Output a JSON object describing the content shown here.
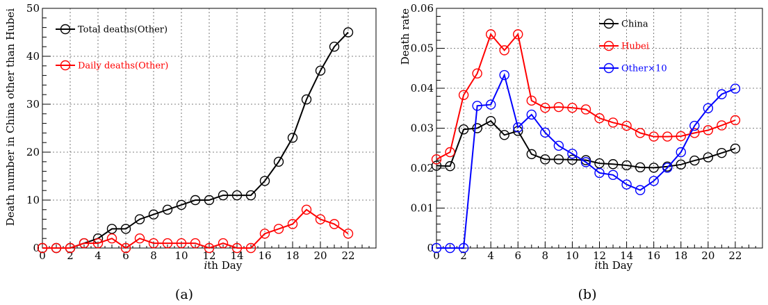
{
  "chart_data": [
    {
      "type": "line",
      "caption": "(a)",
      "xlabel": "ith Day",
      "ylabel": "Death number in China other than Hubei",
      "xlim": [
        0,
        24
      ],
      "ylim": [
        0,
        50
      ],
      "xticks": [
        0,
        2,
        4,
        6,
        8,
        10,
        12,
        14,
        16,
        18,
        20,
        22
      ],
      "yticks": [
        0,
        10,
        20,
        30,
        40,
        50
      ],
      "grid": true,
      "legend_position": "top-left",
      "series": [
        {
          "name": "Total deaths(Other)",
          "color": "#000000",
          "x": [
            0,
            1,
            2,
            3,
            4,
            5,
            6,
            7,
            8,
            9,
            10,
            11,
            12,
            13,
            14,
            15,
            16,
            17,
            18,
            19,
            20,
            21,
            22
          ],
          "y": [
            0,
            0,
            0,
            1,
            2,
            4,
            4,
            6,
            7,
            8,
            9,
            10,
            10,
            11,
            11,
            11,
            14,
            18,
            23,
            31,
            37,
            42,
            45
          ]
        },
        {
          "name": "Daily deaths(Other)",
          "color": "#ff0000",
          "x": [
            0,
            1,
            2,
            3,
            4,
            5,
            6,
            7,
            8,
            9,
            10,
            11,
            12,
            13,
            14,
            15,
            16,
            17,
            18,
            19,
            20,
            21,
            22
          ],
          "y": [
            0,
            0,
            0,
            1,
            1,
            2,
            0,
            2,
            1,
            1,
            1,
            1,
            0,
            1,
            0,
            0,
            3,
            4,
            5,
            8,
            6,
            5,
            3
          ]
        }
      ]
    },
    {
      "type": "line",
      "caption": "(b)",
      "xlabel": "ith Day",
      "ylabel": "Death rate",
      "xlim": [
        0,
        24
      ],
      "ylim": [
        0,
        0.06
      ],
      "xticks": [
        0,
        2,
        4,
        6,
        8,
        10,
        12,
        14,
        16,
        18,
        20,
        22
      ],
      "yticks": [
        0,
        0.01,
        0.02,
        0.03,
        0.04,
        0.05,
        0.06
      ],
      "ytick_labels": [
        "0",
        "0.01",
        "0.02",
        "0.03",
        "0.04",
        "0.05",
        "0.06"
      ],
      "grid": true,
      "legend_position": "top-center",
      "series": [
        {
          "name": "China",
          "color": "#000000",
          "x": [
            0,
            1,
            2,
            3,
            4,
            5,
            6,
            7,
            8,
            9,
            10,
            11,
            12,
            13,
            14,
            15,
            16,
            17,
            18,
            19,
            20,
            21,
            22
          ],
          "y": [
            0.0206,
            0.0205,
            0.0297,
            0.03,
            0.0318,
            0.0283,
            0.0293,
            0.0235,
            0.0222,
            0.0222,
            0.0221,
            0.022,
            0.0212,
            0.021,
            0.0207,
            0.0202,
            0.0201,
            0.0204,
            0.0209,
            0.0219,
            0.0227,
            0.0238,
            0.0249
          ]
        },
        {
          "name": "Hubei",
          "color": "#ff0000",
          "x": [
            0,
            1,
            2,
            3,
            4,
            5,
            6,
            7,
            8,
            9,
            10,
            11,
            12,
            13,
            14,
            15,
            16,
            17,
            18,
            19,
            20,
            21,
            22
          ],
          "y": [
            0.0222,
            0.024,
            0.0383,
            0.0437,
            0.0535,
            0.0495,
            0.0535,
            0.0369,
            0.0351,
            0.0353,
            0.0351,
            0.0347,
            0.0325,
            0.0314,
            0.0306,
            0.0288,
            0.0279,
            0.0279,
            0.028,
            0.0288,
            0.0295,
            0.0307,
            0.032
          ]
        },
        {
          "name": "Other×10",
          "color": "#0000ff",
          "x": [
            0,
            1,
            2,
            3,
            4,
            5,
            6,
            7,
            8,
            9,
            10,
            11,
            12,
            13,
            14,
            15,
            16,
            17,
            18,
            19,
            20,
            21,
            22
          ],
          "y": [
            0,
            0,
            0,
            0.0356,
            0.0359,
            0.0433,
            0.0302,
            0.0334,
            0.0289,
            0.0256,
            0.0236,
            0.0215,
            0.0188,
            0.0183,
            0.0159,
            0.0145,
            0.0168,
            0.0201,
            0.024,
            0.0306,
            0.035,
            0.0385,
            0.0399
          ]
        }
      ]
    }
  ]
}
